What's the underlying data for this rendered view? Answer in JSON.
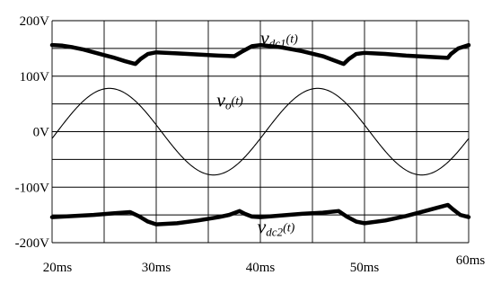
{
  "chart_data": {
    "type": "line",
    "title": "",
    "xlabel": "",
    "ylabel": "",
    "xlim": [
      20,
      60
    ],
    "ylim": [
      -200,
      200
    ],
    "x_unit": "ms",
    "y_unit": "V",
    "x_ticks": [
      {
        "value": 20,
        "label": "20ms"
      },
      {
        "value": 30,
        "label": "30ms"
      },
      {
        "value": 40,
        "label": "40ms"
      },
      {
        "value": 50,
        "label": "50ms"
      },
      {
        "value": 60,
        "label": "60ms"
      }
    ],
    "y_ticks": [
      {
        "value": 200,
        "label": "200V"
      },
      {
        "value": 100,
        "label": "100V"
      },
      {
        "value": 0,
        "label": "0V"
      },
      {
        "value": -100,
        "label": "-100V"
      },
      {
        "value": -200,
        "label": "-200V"
      }
    ],
    "grid": true,
    "legend": "none",
    "series": [
      {
        "label_main": "v",
        "label_sub": "dc1",
        "label_arg": "(t)",
        "color": "#000000",
        "points": [
          [
            20,
            156
          ],
          [
            21,
            155
          ],
          [
            22,
            152
          ],
          [
            23,
            148
          ],
          [
            24,
            143
          ],
          [
            25,
            138
          ],
          [
            26,
            133
          ],
          [
            27,
            127
          ],
          [
            28,
            122
          ],
          [
            28.5,
            131
          ],
          [
            29.2,
            140
          ],
          [
            30,
            143
          ],
          [
            32,
            141
          ],
          [
            34,
            139
          ],
          [
            36,
            137
          ],
          [
            37.5,
            136
          ],
          [
            38.3,
            145
          ],
          [
            39.2,
            154
          ],
          [
            40,
            156
          ],
          [
            42,
            152
          ],
          [
            44,
            145
          ],
          [
            46,
            136
          ],
          [
            47,
            129
          ],
          [
            48,
            122
          ],
          [
            48.5,
            131
          ],
          [
            49.2,
            140
          ],
          [
            50,
            142
          ],
          [
            52,
            140
          ],
          [
            54,
            137
          ],
          [
            56,
            135
          ],
          [
            58,
            133
          ],
          [
            58.3,
            140
          ],
          [
            59,
            150
          ],
          [
            60,
            156
          ]
        ]
      },
      {
        "label_main": "v",
        "label_sub": "o",
        "label_arg": "(t)",
        "color": "#000000",
        "amplitude": 78,
        "period_ms": 20,
        "peak_at_ms": 25.5
      },
      {
        "label_main": "v",
        "label_sub": "dc2",
        "label_arg": "(t)",
        "color": "#000000",
        "points": [
          [
            20,
            -154
          ],
          [
            22,
            -152
          ],
          [
            24,
            -150
          ],
          [
            26,
            -147
          ],
          [
            27.5,
            -145
          ],
          [
            28.3,
            -152
          ],
          [
            29.2,
            -162
          ],
          [
            30,
            -167
          ],
          [
            32,
            -165
          ],
          [
            34,
            -160
          ],
          [
            36,
            -154
          ],
          [
            37,
            -150
          ],
          [
            38,
            -143
          ],
          [
            38.5,
            -148
          ],
          [
            39.2,
            -153
          ],
          [
            40,
            -154
          ],
          [
            42,
            -151
          ],
          [
            44,
            -148
          ],
          [
            46,
            -146
          ],
          [
            47.5,
            -143
          ],
          [
            48.3,
            -153
          ],
          [
            49.2,
            -162
          ],
          [
            50,
            -165
          ],
          [
            52,
            -160
          ],
          [
            54,
            -152
          ],
          [
            56,
            -142
          ],
          [
            57,
            -137
          ],
          [
            58,
            -132
          ],
          [
            58.5,
            -140
          ],
          [
            59.2,
            -150
          ],
          [
            60,
            -154
          ]
        ]
      }
    ],
    "annotations": [
      {
        "main": "v",
        "sub": "dc1",
        "arg": "(t)",
        "x": 40,
        "y": 157
      },
      {
        "main": "v",
        "sub": "o",
        "arg": "(t)",
        "x": 35.8,
        "y": 45
      },
      {
        "main": "v",
        "sub": "dc2",
        "arg": "(t)",
        "x": 39.7,
        "y": -183
      }
    ]
  }
}
